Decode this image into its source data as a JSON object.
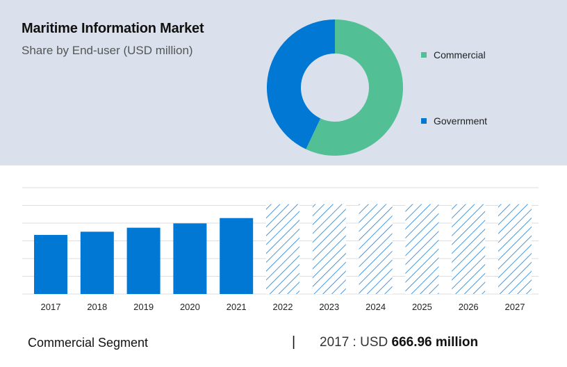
{
  "header": {
    "title": "Maritime Information Market",
    "subtitle": "Share by End-user (USD million)"
  },
  "colors": {
    "commercial": "#52c094",
    "government": "#0078d4",
    "bar": "#0078d4",
    "hatch": "#1a7fd6",
    "grid": "#dddddd"
  },
  "chart_data": [
    {
      "type": "pie",
      "donut": true,
      "slices": [
        {
          "label": "Commercial",
          "value": 57
        },
        {
          "label": "Government",
          "value": 43
        }
      ],
      "legend": "right"
    },
    {
      "type": "bar",
      "categories": [
        "2017",
        "2018",
        "2019",
        "2020",
        "2021",
        "2022",
        "2023",
        "2024",
        "2025",
        "2026",
        "2027"
      ],
      "values": [
        666.96,
        703,
        748,
        797,
        857,
        1014,
        1014,
        1014,
        1014,
        1014,
        1014
      ],
      "forecast_from_index": 5,
      "ylim": [
        0,
        1200
      ],
      "grid": true
    }
  ],
  "footer": {
    "segment": "Commercial Segment",
    "separator": "|",
    "year_prefix": "2017 : USD",
    "value": "666.96 million"
  }
}
